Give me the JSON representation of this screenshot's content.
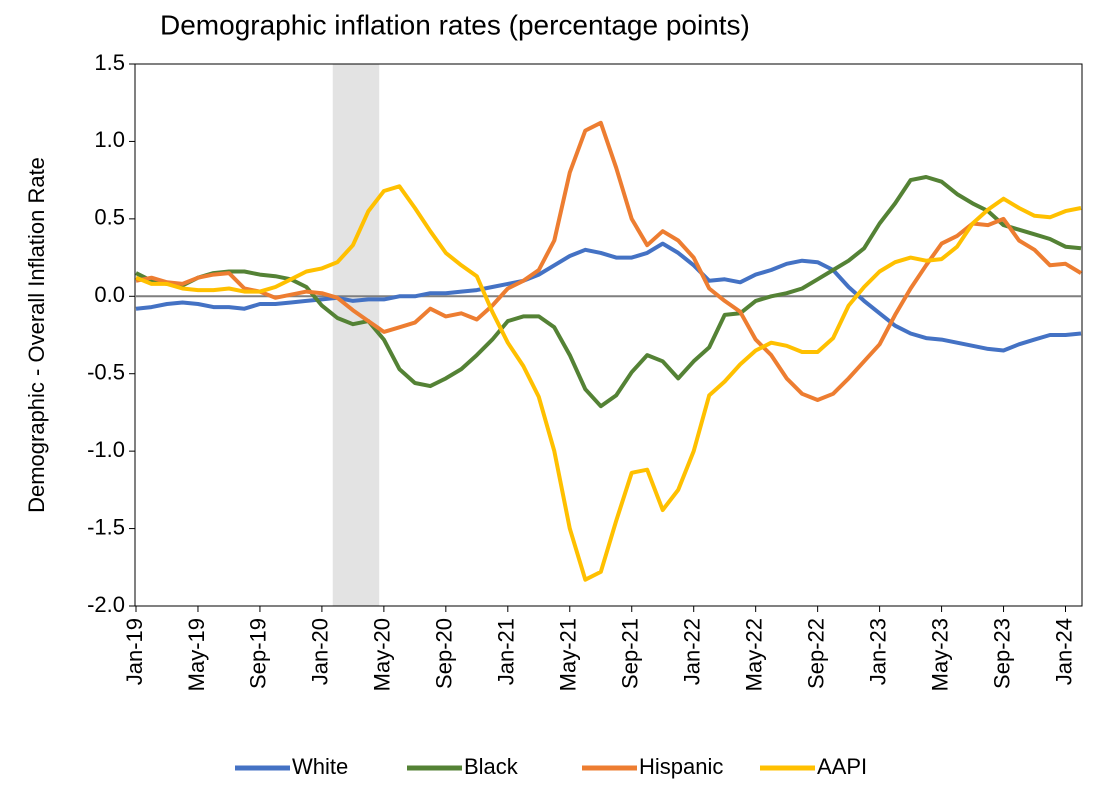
{
  "chart_data": {
    "type": "line",
    "title": "Demographic inflation rates (percentage points)",
    "y_label": "Demographic - Overall Inflation Rate",
    "categories": [
      "Jan-19",
      null,
      null,
      null,
      "May-19",
      null,
      null,
      null,
      "Sep-19",
      null,
      null,
      null,
      "Jan-20",
      null,
      null,
      null,
      "May-20",
      null,
      null,
      null,
      "Sep-20",
      null,
      null,
      null,
      "Jan-21",
      null,
      null,
      null,
      "May-21",
      null,
      null,
      null,
      "Sep-21",
      null,
      null,
      null,
      "Jan-22",
      null,
      null,
      null,
      "May-22",
      null,
      null,
      null,
      "Sep-22",
      null,
      null,
      null,
      "Jan-23",
      null,
      null,
      null,
      "May-23",
      null,
      null,
      null,
      "Sep-23",
      null,
      null,
      null,
      "Jan-24",
      null
    ],
    "series": [
      {
        "name": "White",
        "color": "#4472c4",
        "values": [
          -0.08,
          -0.07,
          -0.05,
          -0.04,
          -0.05,
          -0.07,
          -0.07,
          -0.08,
          -0.05,
          -0.05,
          -0.04,
          -0.03,
          -0.02,
          -0.01,
          -0.03,
          -0.02,
          -0.02,
          0.0,
          0.0,
          0.02,
          0.02,
          0.03,
          0.04,
          0.06,
          0.08,
          0.1,
          0.14,
          0.2,
          0.26,
          0.3,
          0.28,
          0.25,
          0.25,
          0.28,
          0.34,
          0.28,
          0.2,
          0.1,
          0.11,
          0.09,
          0.14,
          0.17,
          0.21,
          0.23,
          0.22,
          0.17,
          0.06,
          -0.03,
          -0.11,
          -0.19,
          -0.24,
          -0.27,
          -0.28,
          -0.3,
          -0.32,
          -0.34,
          -0.35,
          -0.31,
          -0.28,
          -0.25,
          -0.25,
          -0.24
        ]
      },
      {
        "name": "Black",
        "color": "#548235",
        "values": [
          0.15,
          0.1,
          0.08,
          0.07,
          0.12,
          0.15,
          0.16,
          0.16,
          0.14,
          0.13,
          0.11,
          0.06,
          -0.06,
          -0.14,
          -0.18,
          -0.16,
          -0.28,
          -0.47,
          -0.56,
          -0.58,
          -0.53,
          -0.47,
          -0.38,
          -0.28,
          -0.16,
          -0.13,
          -0.13,
          -0.2,
          -0.38,
          -0.6,
          -0.71,
          -0.64,
          -0.49,
          -0.38,
          -0.42,
          -0.53,
          -0.42,
          -0.33,
          -0.12,
          -0.11,
          -0.03,
          0.0,
          0.02,
          0.05,
          0.11,
          0.17,
          0.23,
          0.31,
          0.47,
          0.6,
          0.75,
          0.77,
          0.74,
          0.66,
          0.6,
          0.55,
          0.46,
          0.43,
          0.4,
          0.37,
          0.32,
          0.31
        ]
      },
      {
        "name": "Hispanic",
        "color": "#ed7d31",
        "values": [
          0.1,
          0.12,
          0.09,
          0.08,
          0.12,
          0.14,
          0.15,
          0.05,
          0.03,
          -0.01,
          0.01,
          0.03,
          0.02,
          -0.01,
          -0.09,
          -0.16,
          -0.23,
          -0.2,
          -0.17,
          -0.08,
          -0.13,
          -0.11,
          -0.15,
          -0.06,
          0.05,
          0.1,
          0.17,
          0.36,
          0.8,
          1.07,
          1.12,
          0.83,
          0.5,
          0.33,
          0.42,
          0.36,
          0.25,
          0.05,
          -0.03,
          -0.1,
          -0.28,
          -0.38,
          -0.53,
          -0.63,
          -0.67,
          -0.63,
          -0.53,
          -0.42,
          -0.31,
          -0.12,
          0.05,
          0.2,
          0.34,
          0.39,
          0.47,
          0.46,
          0.5,
          0.36,
          0.3,
          0.2,
          0.21,
          0.15
        ]
      },
      {
        "name": "AAPI",
        "color": "#ffc000",
        "values": [
          0.12,
          0.08,
          0.08,
          0.05,
          0.04,
          0.04,
          0.05,
          0.03,
          0.03,
          0.06,
          0.11,
          0.16,
          0.18,
          0.22,
          0.33,
          0.55,
          0.68,
          0.71,
          0.57,
          0.42,
          0.28,
          0.2,
          0.13,
          -0.1,
          -0.3,
          -0.45,
          -0.65,
          -1.0,
          -1.5,
          -1.83,
          -1.78,
          -1.45,
          -1.14,
          -1.12,
          -1.38,
          -1.25,
          -1.0,
          -0.64,
          -0.55,
          -0.44,
          -0.35,
          -0.3,
          -0.32,
          -0.36,
          -0.36,
          -0.27,
          -0.06,
          0.06,
          0.16,
          0.22,
          0.25,
          0.23,
          0.24,
          0.32,
          0.47,
          0.56,
          0.63,
          0.57,
          0.52,
          0.51,
          0.55,
          0.57
        ]
      }
    ],
    "shaded_range": {
      "from": 12.7,
      "to": 15.7,
      "color": "#e3e3e3"
    },
    "ylim": [
      -2.0,
      1.5
    ],
    "yticks": [
      {
        "value": -2.0,
        "label": "-2.0"
      },
      -1.5,
      {
        "value": -1.0,
        "label": "-1.0"
      },
      -0.5,
      {
        "value": 0,
        "label": "0.0"
      },
      0.5,
      {
        "value": 1.0,
        "label": "1.0"
      },
      1.5
    ],
    "legend": "bottom"
  }
}
